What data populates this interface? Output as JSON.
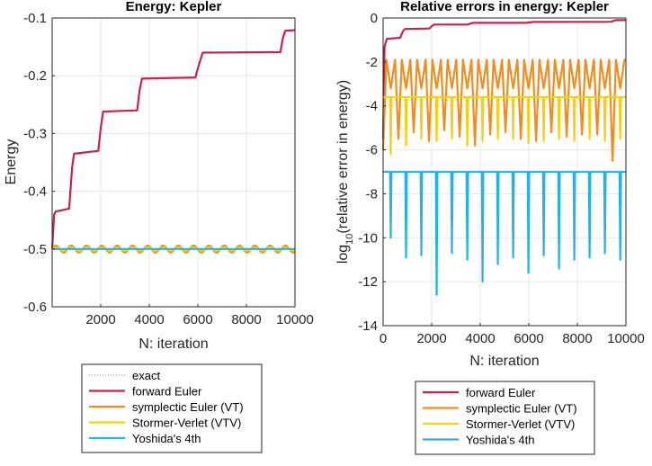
{
  "chart_data": [
    {
      "type": "line",
      "title": "Energy: Kepler",
      "xlabel": "N: iteration",
      "ylabel": "Energy",
      "xlim": [
        0,
        10000
      ],
      "ylim": [
        -0.6,
        -0.1
      ],
      "xticks": [
        2000,
        4000,
        6000,
        8000,
        10000
      ],
      "xtick_labels": [
        "2000",
        "4000",
        "6000",
        "8000",
        "10000"
      ],
      "yticks": [
        -0.6,
        -0.5,
        -0.4,
        -0.3,
        -0.2,
        -0.1
      ],
      "ytick_labels": [
        "-0.6",
        "-0.5",
        "-0.4",
        "-0.3",
        "-0.2",
        "-0.1"
      ],
      "grid": true,
      "legend_position": "below",
      "series": [
        {
          "name": "exact",
          "style": "dotted",
          "color": "#7f7f7f",
          "x": [
            0,
            10000
          ],
          "y": [
            -0.5,
            -0.5
          ]
        },
        {
          "name": "forward Euler",
          "color": "#cc1f4a",
          "x": [
            0,
            80,
            150,
            700,
            820,
            900,
            1900,
            2000,
            2100,
            3500,
            3600,
            3700,
            5900,
            6050,
            6200,
            9400,
            9500,
            9600,
            10000
          ],
          "y": [
            -0.5,
            -0.44,
            -0.435,
            -0.43,
            -0.36,
            -0.335,
            -0.33,
            -0.29,
            -0.262,
            -0.26,
            -0.225,
            -0.205,
            -0.203,
            -0.18,
            -0.16,
            -0.159,
            -0.135,
            -0.122,
            -0.121
          ]
        },
        {
          "name": "symplectic Euler (VT)",
          "color": "#f28c1c",
          "x": [
            0,
            10000
          ],
          "y": [
            -0.5,
            -0.5
          ],
          "osc_amplitude": 0.006,
          "osc_period": 630
        },
        {
          "name": "Stormer-Verlet (VTV)",
          "color": "#f5d00f",
          "x": [
            0,
            10000
          ],
          "y": [
            -0.5,
            -0.5
          ],
          "osc_amplitude": 0.003,
          "osc_period": 630
        },
        {
          "name": "Yoshida's 4th",
          "color": "#21b4e8",
          "x": [
            0,
            10000
          ],
          "y": [
            -0.5,
            -0.5
          ]
        }
      ]
    },
    {
      "type": "line",
      "title": "Relative errors in energy: Kepler",
      "xlabel": "N: iteration",
      "ylabel": "log10(relative error in energy)",
      "xlim": [
        0,
        10000
      ],
      "ylim": [
        -14,
        0
      ],
      "xticks": [
        0,
        2000,
        4000,
        6000,
        8000,
        10000
      ],
      "xtick_labels": [
        "0",
        "2000",
        "4000",
        "6000",
        "8000",
        "10000"
      ],
      "yticks": [
        -14,
        -12,
        -10,
        -8,
        -6,
        -4,
        -2,
        0
      ],
      "ytick_labels": [
        "-14",
        "-12",
        "-10",
        "-8",
        "-6",
        "-4",
        "-2",
        "0"
      ],
      "grid": true,
      "legend_position": "below",
      "series": [
        {
          "name": "forward Euler",
          "color": "#cc1f4a",
          "x": [
            0,
            60,
            150,
            700,
            820,
            900,
            1900,
            2000,
            2100,
            3500,
            3600,
            3700,
            5900,
            6050,
            6200,
            9400,
            9500,
            9600,
            10000
          ],
          "y": [
            -5.5,
            -1.3,
            -0.95,
            -0.9,
            -0.6,
            -0.5,
            -0.48,
            -0.38,
            -0.3,
            -0.3,
            -0.25,
            -0.22,
            -0.22,
            -0.2,
            -0.18,
            -0.17,
            -0.12,
            -0.1,
            -0.1
          ]
        },
        {
          "name": "symplectic Euler (VT)",
          "color": "#f28c1c",
          "peak": -1.9,
          "dips": [
            -6.0,
            -5.5,
            -5.2,
            -5.6,
            -5.1,
            -5.4,
            -5.8,
            -5.3,
            -5.2,
            -5.5,
            -5.6,
            -5.2,
            -5.4,
            -5.3,
            -5.3,
            -6.5
          ],
          "period": 630
        },
        {
          "name": "Stormer-Verlet (VTV)",
          "color": "#f5d00f",
          "level": -3.6,
          "dips": [
            -6.2,
            -5.8,
            -5.5,
            -5.6,
            -5.5,
            -5.8,
            -5.6,
            -5.5,
            -5.5,
            -5.7,
            -5.6,
            -5.5,
            -5.6,
            -5.5,
            -5.6,
            -5.5
          ],
          "period": 630
        },
        {
          "name": "Yoshida's 4th",
          "color": "#21b4e8",
          "level": -7.0,
          "dips": [
            -10.0,
            -10.9,
            -10.8,
            -12.6,
            -10.7,
            -11.0,
            -12.0,
            -11.2,
            -10.9,
            -11.6,
            -10.8,
            -11.4,
            -11.0,
            -10.9,
            -10.7,
            -11.0
          ],
          "period": 630
        }
      ]
    }
  ],
  "legends": {
    "left": [
      "exact",
      "forward Euler",
      "symplectic Euler (VT)",
      "Stormer-Verlet (VTV)",
      "Yoshida's 4th"
    ],
    "right": [
      "forward Euler",
      "symplectic Euler (VT)",
      "Stormer-Verlet (VTV)",
      "Yoshida's 4th"
    ]
  }
}
